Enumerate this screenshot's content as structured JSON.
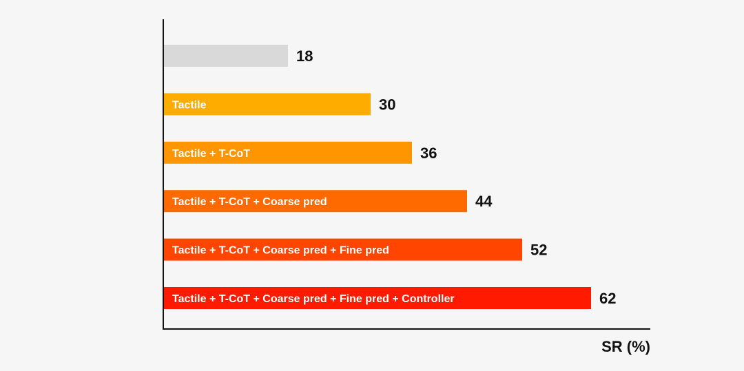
{
  "chart_data": {
    "type": "bar",
    "orientation": "horizontal",
    "categories": [
      "",
      "Tactile",
      "Tactile + T-CoT",
      "Tactile + T-CoT + Coarse pred",
      "Tactile + T-CoT + Coarse pred + Fine pred",
      "Tactile + T-CoT + Coarse pred + Fine pred + Controller"
    ],
    "values": [
      18,
      30,
      36,
      44,
      52,
      62
    ],
    "value_labels": [
      "18",
      "30",
      "36",
      "44",
      "52",
      "62"
    ],
    "colors": [
      "#d9d9d9",
      "#ffac00",
      "#ff9500",
      "#ff6a00",
      "#ff4500",
      "#ff1a00"
    ],
    "xlabel": "SR (%)",
    "ylabel": "",
    "title": "",
    "xlim": [
      0,
      70
    ],
    "grid": false,
    "legend": "none"
  }
}
